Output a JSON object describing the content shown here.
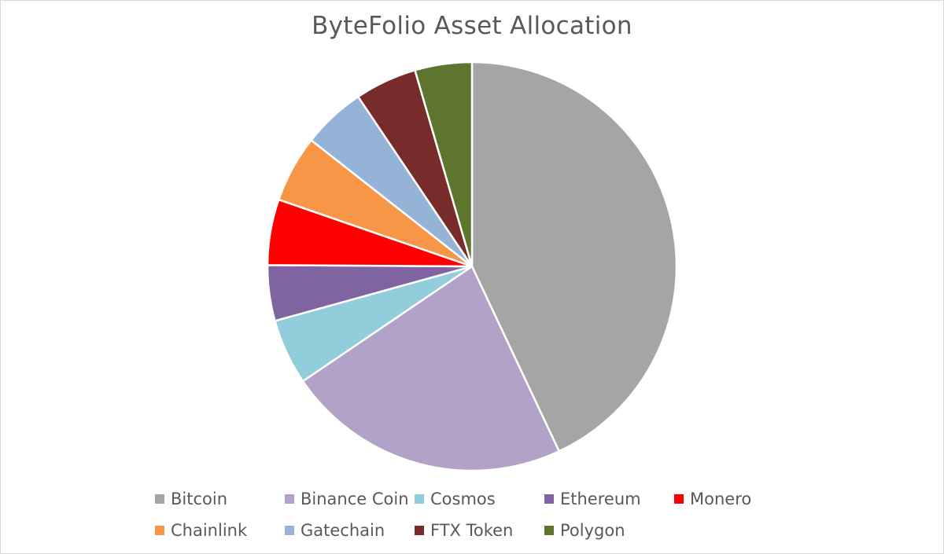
{
  "chart_data": {
    "type": "pie",
    "title": "ByteFolio Asset Allocation",
    "slices": [
      {
        "label": "Bitcoin",
        "value": 43.0,
        "color": "#a5a5a5"
      },
      {
        "label": "Binance Coin",
        "value": 22.5,
        "color": "#b2a2c7"
      },
      {
        "label": "Cosmos",
        "value": 5.2,
        "color": "#92cddc"
      },
      {
        "label": "Ethereum",
        "value": 4.4,
        "color": "#8064a2"
      },
      {
        "label": "Monero",
        "value": 5.2,
        "color": "#ff0000"
      },
      {
        "label": "Chainlink",
        "value": 5.3,
        "color": "#f79646"
      },
      {
        "label": "Gatechain",
        "value": 5.0,
        "color": "#95b3d7"
      },
      {
        "label": "FTX Token",
        "value": 4.9,
        "color": "#772c2a"
      },
      {
        "label": "Polygon",
        "value": 4.5,
        "color": "#5e7530"
      }
    ],
    "legend_position": "bottom"
  }
}
